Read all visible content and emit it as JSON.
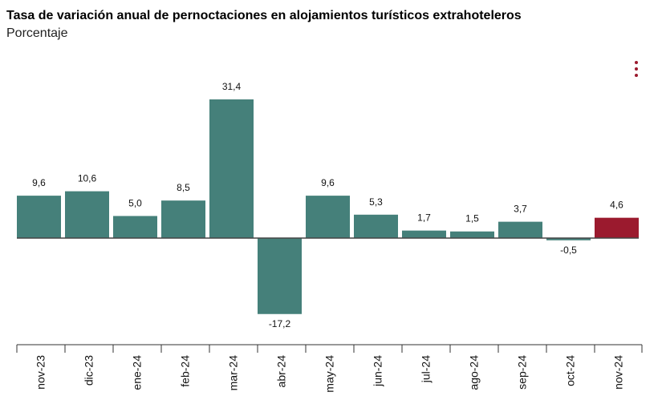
{
  "chart_data": {
    "type": "bar",
    "title": "Tasa de variación anual de pernoctaciones en alojamientos turísticos extrahoteleros",
    "subtitle": "Porcentaje",
    "categories": [
      "nov-23",
      "dic-23",
      "ene-24",
      "feb-24",
      "mar-24",
      "abr-24",
      "may-24",
      "jun-24",
      "jul-24",
      "ago-24",
      "sep-24",
      "oct-24",
      "nov-24"
    ],
    "values": [
      9.6,
      10.6,
      5.0,
      8.5,
      31.4,
      -17.2,
      9.6,
      5.3,
      1.7,
      1.5,
      3.7,
      -0.5,
      4.6
    ],
    "value_labels": [
      "9,6",
      "10,6",
      "5,0",
      "8,5",
      "31,4",
      "-17,2",
      "9,6",
      "5,3",
      "1,7",
      "1,5",
      "3,7",
      "-0,5",
      "4,6"
    ],
    "colors": {
      "default": "#45807a",
      "highlight": "#9b1a2e",
      "zero_line": "#444444",
      "axis": "#333333"
    },
    "highlight_index": 12,
    "legend": "none",
    "grid": false
  },
  "menu": {
    "icon": "vertical-dots-icon",
    "color": "#9b1a2e"
  }
}
